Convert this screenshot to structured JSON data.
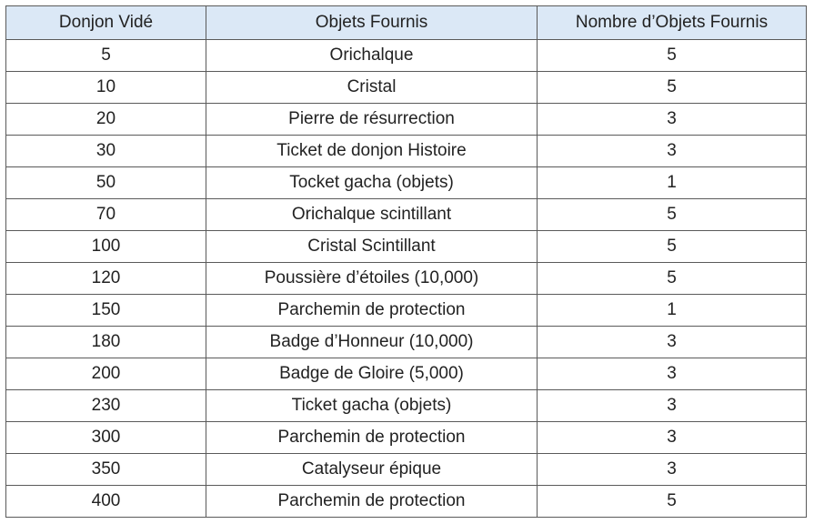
{
  "table": {
    "header": [
      "Donjon Vidé",
      "Objets Fournis",
      "Nombre d’Objets Fournis"
    ],
    "rows": [
      [
        5,
        "Orichalque",
        5
      ],
      [
        10,
        "Cristal",
        5
      ],
      [
        20,
        "Pierre de résurrection",
        3
      ],
      [
        30,
        "Ticket de donjon Histoire",
        3
      ],
      [
        50,
        "Tocket gacha (objets)",
        1
      ],
      [
        70,
        "Orichalque scintillant",
        5
      ],
      [
        100,
        "Cristal Scintillant",
        5
      ],
      [
        120,
        "Poussière d’étoiles (10,000)",
        5
      ],
      [
        150,
        "Parchemin de protection",
        1
      ],
      [
        180,
        "Badge d’Honneur (10,000)",
        3
      ],
      [
        200,
        "Badge de Gloire (5,000)",
        3
      ],
      [
        230,
        "Ticket gacha (objets)",
        3
      ],
      [
        300,
        "Parchemin de protection",
        3
      ],
      [
        350,
        "Catalyseur épique",
        3
      ],
      [
        400,
        "Parchemin de protection",
        5
      ]
    ]
  }
}
